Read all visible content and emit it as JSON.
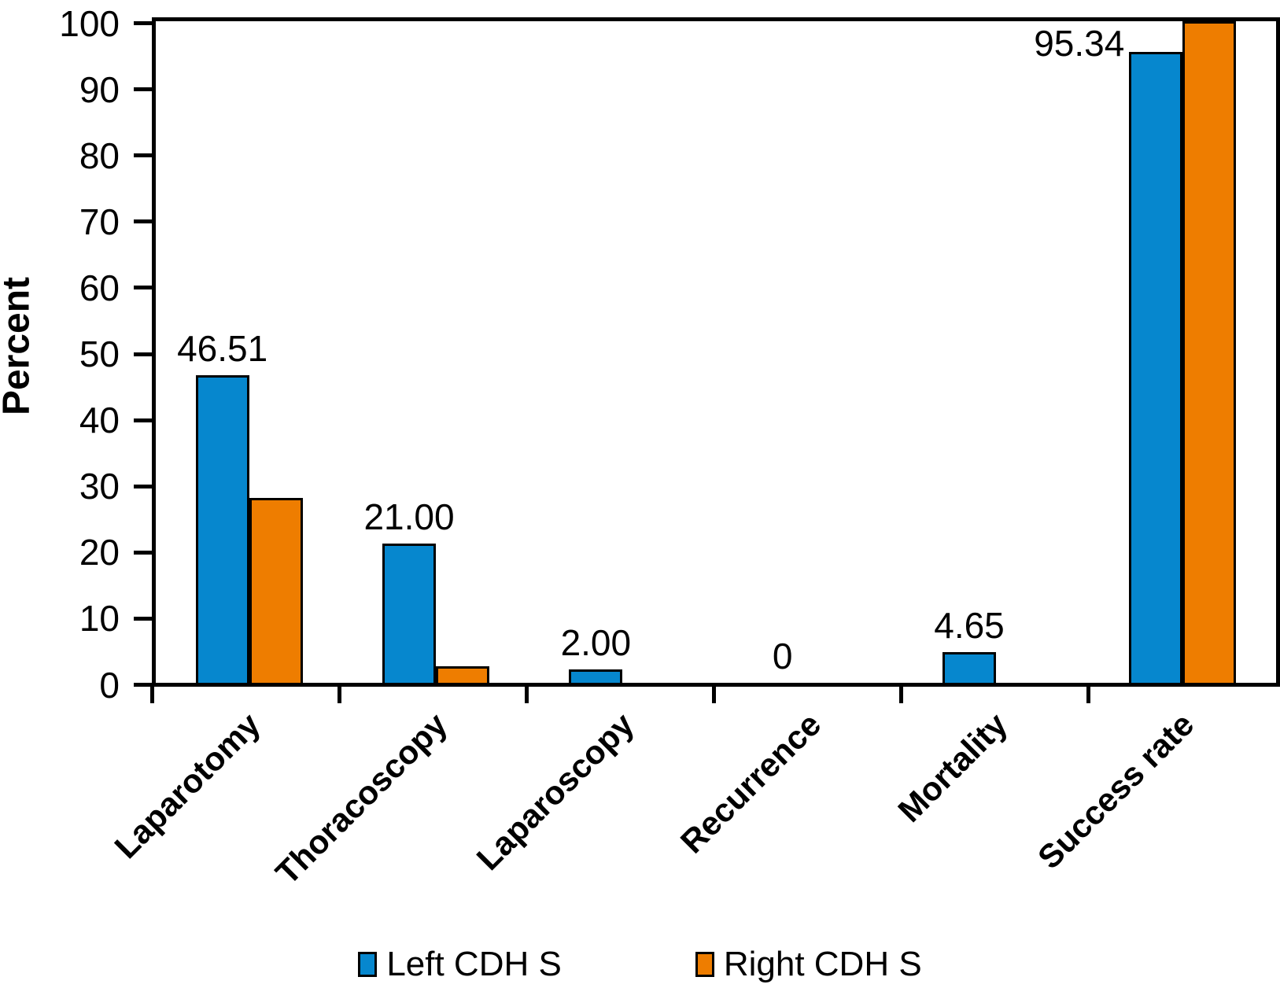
{
  "chart_data": {
    "type": "bar",
    "title": "",
    "xlabel": "",
    "ylabel": "Percent",
    "ylim": [
      0,
      100
    ],
    "yticks": [
      0,
      10,
      20,
      30,
      40,
      50,
      60,
      70,
      80,
      90,
      100
    ],
    "grid": false,
    "legend_position": "bottom",
    "categories": [
      "Laparotomy",
      "Thoracoscopy",
      "Laparoscopy",
      "Recurrence",
      "Mortality",
      "Success rate"
    ],
    "series": [
      {
        "name": "Left CDH S",
        "color": "#0687CE",
        "values": [
          46.51,
          21.0,
          2.0,
          0,
          4.65,
          95.34
        ]
      },
      {
        "name": "Right CDH S",
        "color": "#EE7D00",
        "values": [
          28,
          2.5,
          0,
          0,
          0,
          100
        ]
      }
    ],
    "bar_labels": [
      "46.51",
      "21.00",
      "2.00",
      "0",
      "4.65",
      "95.34"
    ],
    "bar_label_placement": [
      "above",
      "above",
      "above",
      "above",
      "above",
      "left-of-top"
    ]
  },
  "legend": {
    "items": [
      {
        "label": "Left CDH S",
        "color": "#0687CE"
      },
      {
        "label": "Right CDH S",
        "color": "#EE7D00"
      }
    ]
  },
  "colors": {
    "axis": "#000000",
    "blue": "#0687CE",
    "orange": "#EE7D00"
  }
}
